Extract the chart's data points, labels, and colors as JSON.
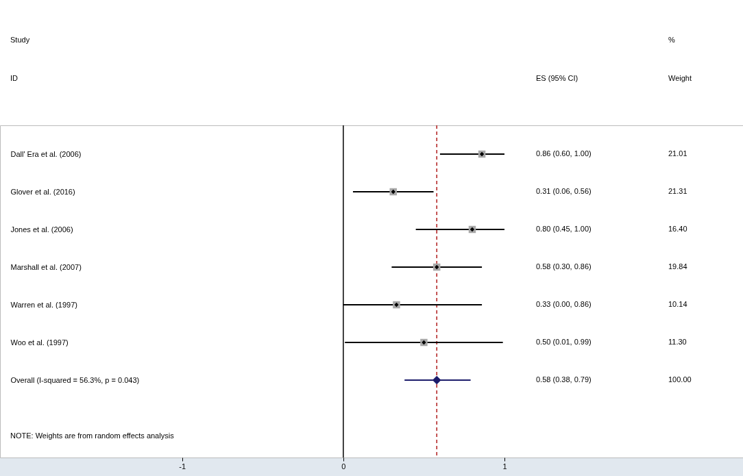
{
  "chart_data": {
    "type": "scatter",
    "orientation": "horizontal",
    "categories": [
      "Dall' Era et al. (2006)",
      "Glover et al. (2016)",
      "Jones et al. (2006)",
      "Marshall et al. (2007)",
      "Warren et al. (1997)",
      "Woo et al. (1997)",
      "Overall  (I-squared = 56.3%, p = 0.043)"
    ],
    "xlim": [
      -2.13,
      2.48
    ],
    "xticks": [
      -1,
      0,
      1
    ],
    "series": [
      {
        "type": "scatter",
        "color": "#000000",
        "marker": "diamond",
        "values": [
          0.86,
          0.31,
          0.8,
          0.58,
          0.33,
          0.5,
          null
        ],
        "errors": [
          [
            0.6,
            1.0
          ],
          [
            0.06,
            0.56
          ],
          [
            0.45,
            1.0
          ],
          [
            0.3,
            0.86
          ],
          [
            0.0,
            0.86
          ],
          [
            0.01,
            0.99
          ],
          null
        ]
      },
      {
        "type": "scatter",
        "color": "#1c1c6b",
        "marker": "diamond",
        "values": [
          null,
          null,
          null,
          null,
          null,
          null,
          0.58
        ],
        "errors": [
          null,
          null,
          null,
          null,
          null,
          null,
          [
            0.38,
            0.79
          ]
        ]
      }
    ],
    "ref_lines": [
      {
        "axis": "x",
        "value": 0,
        "color": "#000000",
        "line_style": "solid"
      },
      {
        "axis": "x",
        "value": 0.58,
        "color": "#b01c1c",
        "line_style": "dashed"
      }
    ],
    "annotations": [
      "Study",
      "ID",
      "ES (95% CI)",
      "%",
      "Weight",
      "0.86 (0.60, 1.00)",
      "0.31 (0.06, 0.56)",
      "0.80 (0.45, 1.00)",
      "0.58 (0.30, 0.86)",
      "0.33 (0.00, 0.86)",
      "0.50 (0.01, 0.99)",
      "0.58 (0.38, 0.79)",
      "21.01",
      "21.31",
      "16.40",
      "19.84",
      "10.14",
      "11.30",
      "100.00",
      "NOTE: Weights are from random effects analysis"
    ],
    "grid": false
  }
}
